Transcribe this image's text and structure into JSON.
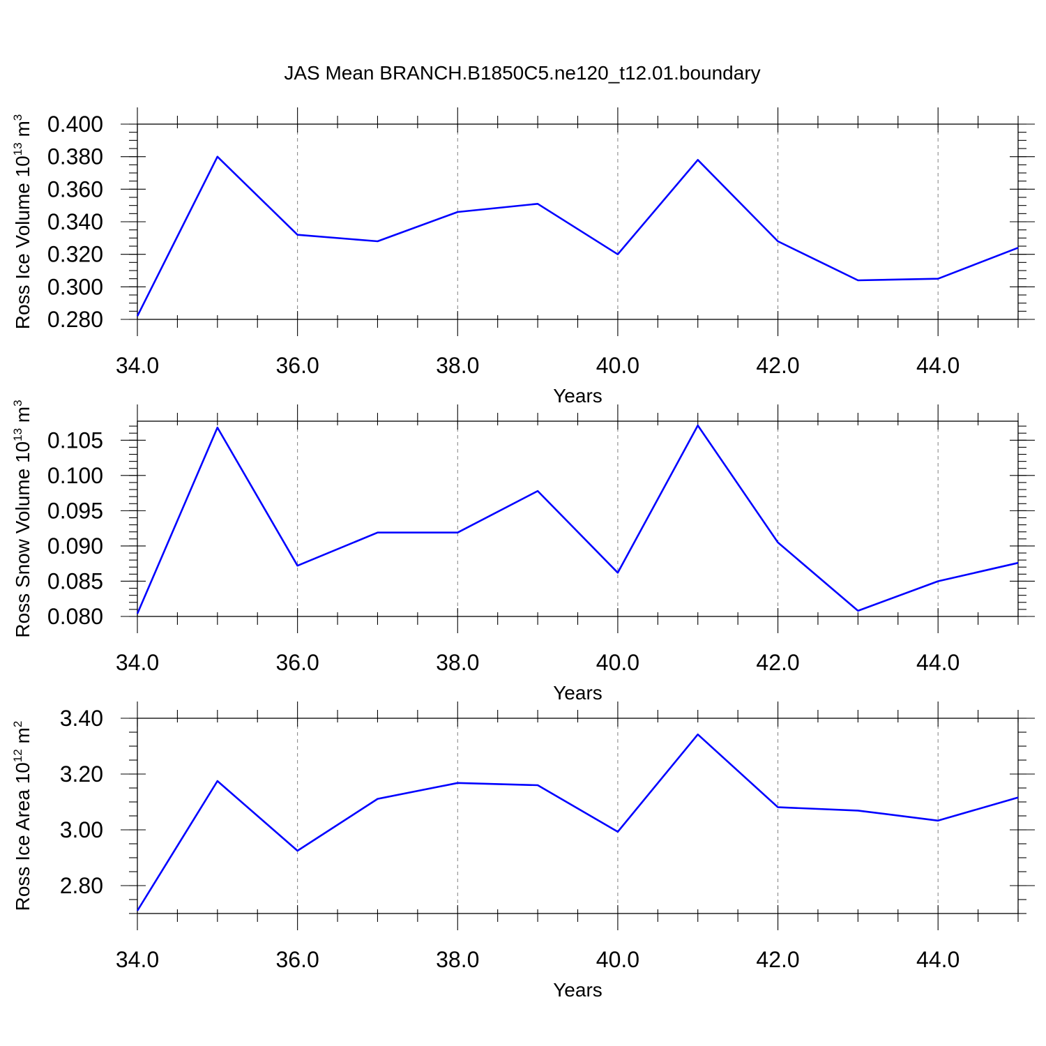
{
  "page": {
    "title": "JAS Mean BRANCH.B1850C5.ne120_t12.01.boundary"
  },
  "chart_data": [
    {
      "type": "line",
      "title": "",
      "xlabel": "Years",
      "ylabel": {
        "text": "Ross Ice Volume 10",
        "exponent": "13",
        "unit": " m",
        "unit_exponent": "3"
      },
      "xlim": [
        34,
        45
      ],
      "ylim": [
        0.28,
        0.4
      ],
      "x_ticks": [
        "34.0",
        "36.0",
        "38.0",
        "40.0",
        "42.0",
        "44.0"
      ],
      "y_ticks": [
        "0.280",
        "0.300",
        "0.320",
        "0.340",
        "0.360",
        "0.380",
        "0.400"
      ],
      "grid": "vertical dashed at major x ticks",
      "series_color": "#0000ff",
      "x": [
        34,
        35,
        36,
        37,
        38,
        39,
        40,
        41,
        42,
        43,
        44,
        45
      ],
      "series": [
        {
          "values": [
            0.282,
            0.38,
            0.332,
            0.328,
            0.346,
            0.351,
            0.32,
            0.378,
            0.328,
            0.304,
            0.305,
            0.324
          ]
        }
      ]
    },
    {
      "type": "line",
      "title": "",
      "xlabel": "Years",
      "ylabel": {
        "text": "Ross Snow Volume 10",
        "exponent": "13",
        "unit": " m",
        "unit_exponent": "3"
      },
      "xlim": [
        34,
        45
      ],
      "ylim": [
        0.08,
        0.1077
      ],
      "x_ticks": [
        "34.0",
        "36.0",
        "38.0",
        "40.0",
        "42.0",
        "44.0"
      ],
      "y_ticks": [
        "0.080",
        "0.085",
        "0.090",
        "0.095",
        "0.100",
        "0.105"
      ],
      "grid": "vertical dashed at major x ticks",
      "series_color": "#0000ff",
      "x": [
        34,
        35,
        36,
        37,
        38,
        39,
        40,
        41,
        42,
        43,
        44,
        45
      ],
      "series": [
        {
          "values": [
            0.0804,
            0.1068,
            0.0872,
            0.0919,
            0.0919,
            0.0978,
            0.0862,
            0.1071,
            0.0905,
            0.0808,
            0.085,
            0.0876
          ]
        }
      ]
    },
    {
      "type": "line",
      "title": "",
      "xlabel": "Years",
      "ylabel": {
        "text": "Ross Ice Area 10",
        "exponent": "12",
        "unit": " m",
        "unit_exponent": "2"
      },
      "xlim": [
        34,
        45
      ],
      "ylim": [
        2.7,
        3.4
      ],
      "x_ticks": [
        "34.0",
        "36.0",
        "38.0",
        "40.0",
        "42.0",
        "44.0"
      ],
      "y_ticks": [
        "2.80",
        "3.00",
        "3.20",
        "3.40"
      ],
      "grid": "vertical dashed at major x ticks",
      "series_color": "#0000ff",
      "x": [
        34,
        35,
        36,
        37,
        38,
        39,
        40,
        41,
        42,
        43,
        44,
        45
      ],
      "series": [
        {
          "values": [
            2.71,
            3.175,
            2.925,
            3.111,
            3.168,
            3.16,
            2.993,
            3.342,
            3.081,
            3.069,
            3.033,
            3.116
          ]
        }
      ]
    }
  ]
}
